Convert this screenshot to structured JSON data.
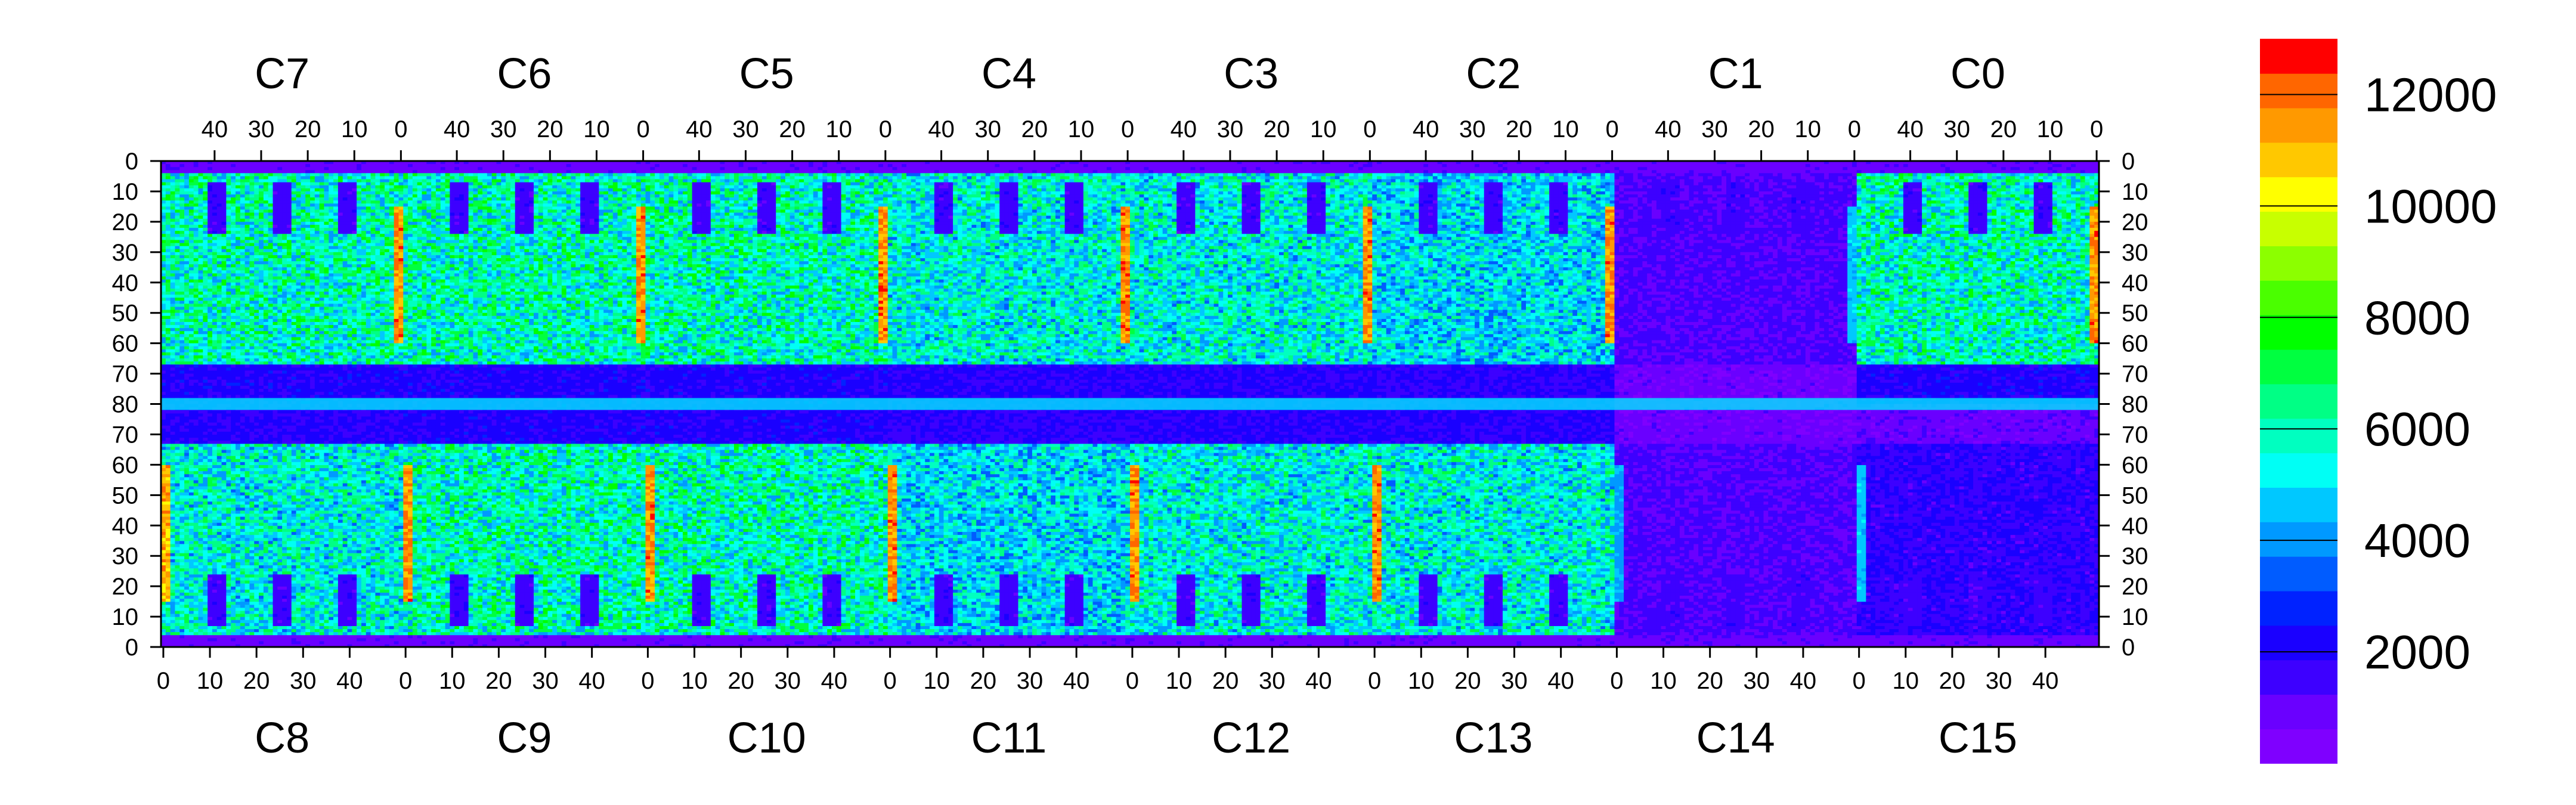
{
  "chart_data": {
    "type": "heatmap",
    "title": "",
    "xlabel": "",
    "ylabel": "",
    "top_chips": [
      "C7",
      "C6",
      "C5",
      "C4",
      "C3",
      "C2",
      "C1",
      "C0"
    ],
    "bottom_chips": [
      "C8",
      "C9",
      "C10",
      "C11",
      "C12",
      "C13",
      "C14",
      "C15"
    ],
    "top_x_ticks": [
      "40",
      "30",
      "20",
      "10",
      "0"
    ],
    "bottom_x_ticks": [
      "0",
      "10",
      "20",
      "30",
      "40"
    ],
    "y_ticks_top_half": [
      "0",
      "10",
      "20",
      "30",
      "40",
      "50",
      "60",
      "70",
      "80"
    ],
    "y_ticks_bottom_half": [
      "70",
      "60",
      "50",
      "40",
      "30",
      "20",
      "10",
      "0"
    ],
    "columns_per_chip": 52,
    "rows_per_half": 80,
    "colorbar": {
      "min": 0,
      "max": 13000,
      "ticks": [
        "2000",
        "4000",
        "6000",
        "8000",
        "10000",
        "12000"
      ],
      "tick_values": [
        2000,
        4000,
        6000,
        8000,
        10000,
        12000
      ],
      "colors": [
        "#7f00ff",
        "#6a00ff",
        "#3d00ff",
        "#1a00ff",
        "#0022ff",
        "#005cff",
        "#0099ff",
        "#00c8ff",
        "#00fff5",
        "#00ffc0",
        "#00ff85",
        "#00ff40",
        "#00ff00",
        "#4aff00",
        "#8cff00",
        "#c8ff00",
        "#ffff00",
        "#ffc800",
        "#ff9900",
        "#ff6600",
        "#ff0000"
      ]
    },
    "chip_level_summary": [
      {
        "chip": "C7",
        "typical": 6500,
        "hot_column": 12500
      },
      {
        "chip": "C6",
        "typical": 6500,
        "hot_column": 12500
      },
      {
        "chip": "C5",
        "typical": 6500,
        "hot_column": 12500
      },
      {
        "chip": "C4",
        "typical": 6000,
        "hot_column": 12500
      },
      {
        "chip": "C3",
        "typical": 6000,
        "hot_column": 12500
      },
      {
        "chip": "C2",
        "typical": 5500,
        "hot_column": 12500
      },
      {
        "chip": "C1",
        "typical": 1500,
        "hot_column": 5000
      },
      {
        "chip": "C0",
        "typical": 6500,
        "hot_column": 12500
      },
      {
        "chip": "C8",
        "typical": 6000,
        "hot_column": 12000
      },
      {
        "chip": "C9",
        "typical": 6500,
        "hot_column": 12500
      },
      {
        "chip": "C10",
        "typical": 6500,
        "hot_column": 12500
      },
      {
        "chip": "C11",
        "typical": 5500,
        "hot_column": 12500
      },
      {
        "chip": "C12",
        "typical": 6000,
        "hot_column": 12500
      },
      {
        "chip": "C13",
        "typical": 6000,
        "hot_column": 12500
      },
      {
        "chip": "C14",
        "typical": 1500,
        "hot_column": 4500
      },
      {
        "chip": "C15",
        "typical": 2000,
        "hot_column": 5000
      }
    ]
  }
}
